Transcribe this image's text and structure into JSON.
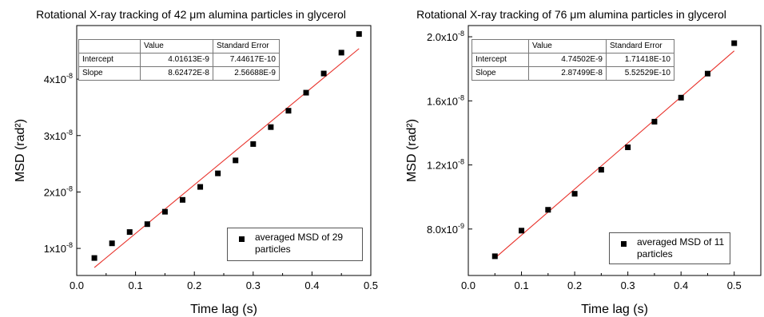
{
  "chart_data": [
    {
      "type": "scatter",
      "title": "Rotational X-ray tracking of 42 μm alumina particles in glycerol",
      "xlabel": "Time lag (s)",
      "ylabel": "MSD (rad²)",
      "xlim": [
        0.0,
        0.5
      ],
      "ylim": [
        5.2e-09,
        4.95e-08
      ],
      "xticks": [
        "0.0",
        "0.1",
        "0.2",
        "0.3",
        "0.4",
        "0.5"
      ],
      "yticks": [
        {
          "value": 1e-08,
          "base": "1x10",
          "exp": "-8"
        },
        {
          "value": 2e-08,
          "base": "2x10",
          "exp": "-8"
        },
        {
          "value": 3e-08,
          "base": "3x10",
          "exp": "-8"
        },
        {
          "value": 4e-08,
          "base": "4x10",
          "exp": "-8"
        }
      ],
      "series": [
        {
          "name": "averaged MSD of 29 particles",
          "marker": "square",
          "color": "#000000",
          "x": [
            0.03,
            0.06,
            0.09,
            0.12,
            0.15,
            0.18,
            0.21,
            0.24,
            0.27,
            0.3,
            0.33,
            0.36,
            0.39,
            0.42,
            0.45,
            0.48
          ],
          "y": [
            8.3e-09,
            1.09e-08,
            1.29e-08,
            1.43e-08,
            1.65e-08,
            1.86e-08,
            2.09e-08,
            2.33e-08,
            2.56e-08,
            2.85e-08,
            3.15e-08,
            3.44e-08,
            3.76e-08,
            4.1e-08,
            4.47e-08,
            4.8e-08
          ]
        }
      ],
      "fit": {
        "color": "#e8312a",
        "x_range": [
          0.03,
          0.48
        ],
        "intercept": 4.01613e-09,
        "slope": 8.62472e-08
      },
      "fit_table": {
        "header": [
          "",
          "Value",
          "Standard Error"
        ],
        "rows": [
          [
            "Intercept",
            "4.01613E-9",
            "7.44617E-10"
          ],
          [
            "Slope",
            "8.62472E-8",
            "2.56688E-9"
          ]
        ]
      },
      "legend": {
        "position": "bottom-right",
        "lines": [
          "averaged MSD of 29",
          "particles"
        ]
      },
      "grid": false
    },
    {
      "type": "scatter",
      "title": "Rotational X-ray tracking of 76 μm alumina particles in glycerol",
      "xlabel": "Time lag (s)",
      "ylabel": "MSD (rad²)",
      "xlim": [
        0.0,
        0.55
      ],
      "ylim": [
        5.1e-09,
        2.07e-08
      ],
      "xticks": [
        "0.0",
        "0.1",
        "0.2",
        "0.3",
        "0.4",
        "0.5"
      ],
      "yticks": [
        {
          "value": 8e-09,
          "base": "8.0x10",
          "exp": "-9"
        },
        {
          "value": 1.2e-08,
          "base": "1.2x10",
          "exp": "-8"
        },
        {
          "value": 1.6e-08,
          "base": "1.6x10",
          "exp": "-8"
        },
        {
          "value": 2e-08,
          "base": "2.0x10",
          "exp": "-8"
        }
      ],
      "series": [
        {
          "name": "averaged MSD of 11 particles",
          "marker": "square",
          "color": "#000000",
          "x": [
            0.05,
            0.1,
            0.15,
            0.2,
            0.25,
            0.3,
            0.35,
            0.4,
            0.45,
            0.5
          ],
          "y": [
            6.3e-09,
            7.9e-09,
            9.2e-09,
            1.02e-08,
            1.17e-08,
            1.31e-08,
            1.47e-08,
            1.62e-08,
            1.77e-08,
            1.96e-08
          ]
        }
      ],
      "fit": {
        "color": "#e8312a",
        "x_range": [
          0.05,
          0.5
        ],
        "intercept": 4.74502e-09,
        "slope": 2.87499e-08
      },
      "fit_table": {
        "header": [
          "",
          "Value",
          "Standard Error"
        ],
        "rows": [
          [
            "Intercept",
            "4.74502E-9",
            "1.71418E-10"
          ],
          [
            "Slope",
            "2.87499E-8",
            "5.52529E-10"
          ]
        ]
      },
      "legend": {
        "position": "bottom-right",
        "lines": [
          "averaged MSD of 11",
          "particles"
        ]
      },
      "grid": false
    }
  ]
}
